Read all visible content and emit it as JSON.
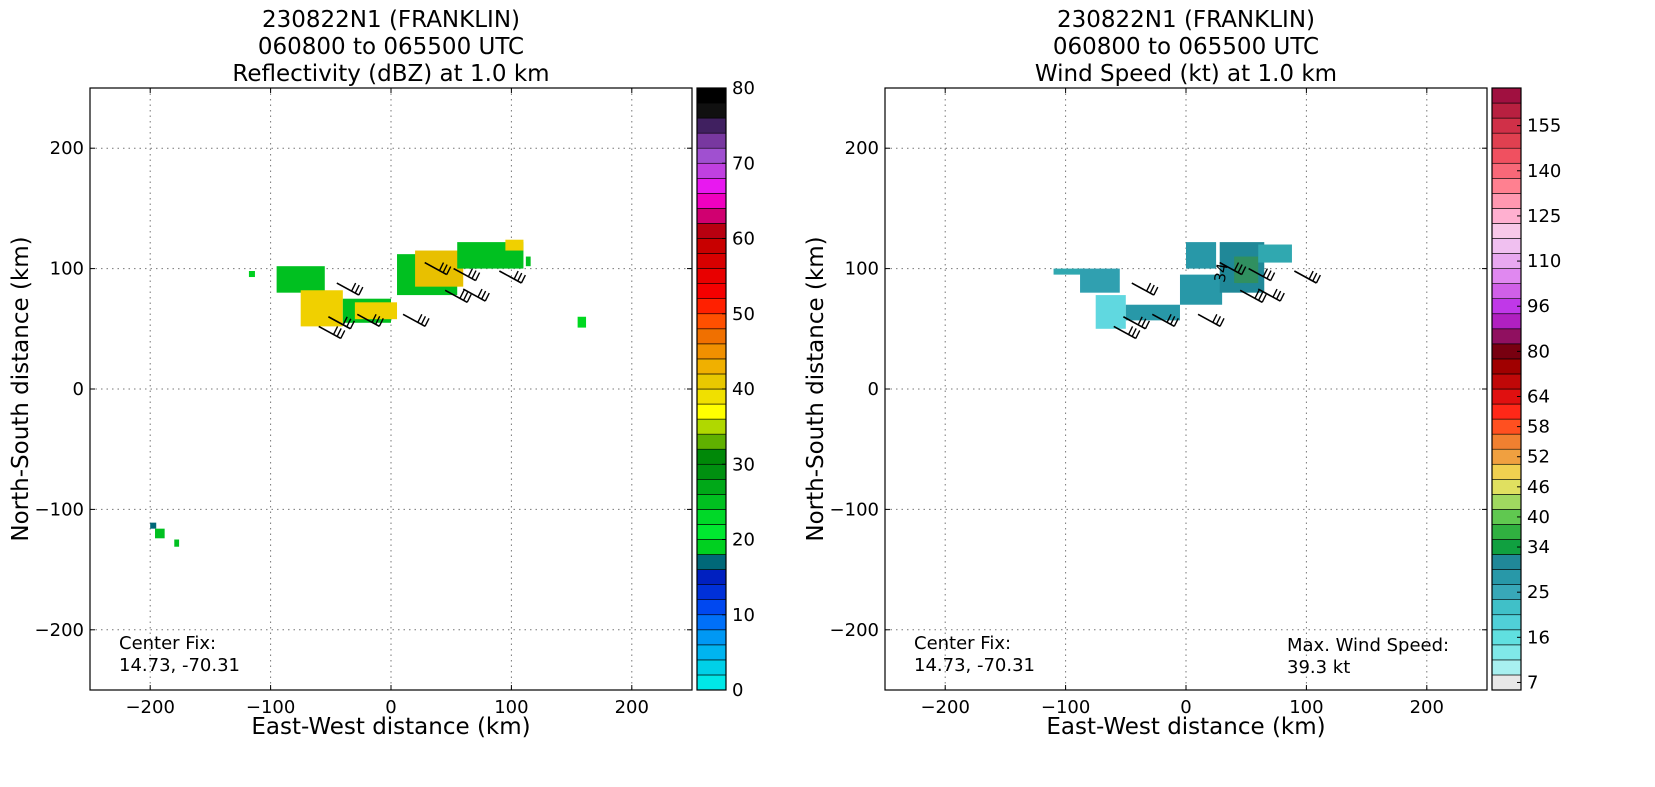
{
  "chart_data": [
    {
      "type": "heatmap",
      "title_lines": [
        "230822N1 (FRANKLIN)",
        "060800 to 065500 UTC",
        "Reflectivity (dBZ) at 1.0 km"
      ],
      "xlabel": "East-West distance (km)",
      "ylabel": "North-South distance (km)",
      "xlim": [
        -250,
        250
      ],
      "ylim": [
        -250,
        250
      ],
      "xticks": [
        -200,
        -100,
        0,
        100,
        200
      ],
      "yticks": [
        -200,
        -100,
        0,
        100,
        200
      ],
      "grid": true,
      "annotations": [
        {
          "position": "bottom-left",
          "lines": [
            "Center Fix:",
            "14.73, -70.31"
          ]
        }
      ],
      "colorbar": {
        "range": [
          0,
          80
        ],
        "tick_labels": [
          "0",
          "10",
          "20",
          "30",
          "40",
          "50",
          "60",
          "70",
          "80"
        ],
        "tick_values": [
          0,
          10,
          20,
          30,
          40,
          50,
          60,
          70,
          80
        ],
        "colors": [
          "#00e8e8",
          "#00d0e8",
          "#00b4f0",
          "#0098f4",
          "#0070f8",
          "#0048f0",
          "#0030d8",
          "#0020c0",
          "#006878",
          "#00d020",
          "#00e830",
          "#00d828",
          "#00c020",
          "#00a818",
          "#009010",
          "#008808",
          "#60b000",
          "#b0d800",
          "#ffff00",
          "#f0e000",
          "#e8c800",
          "#f0b000",
          "#f09000",
          "#f07000",
          "#ff5000",
          "#ff2000",
          "#f40000",
          "#e80000",
          "#d80000",
          "#c80000",
          "#b80010",
          "#d00070",
          "#f000c0",
          "#e818f0",
          "#c040e0",
          "#a050d0",
          "#7838a0",
          "#402060",
          "#101010",
          "#000000"
        ]
      },
      "echo_regions": [
        {
          "x": [
            -118,
            -113
          ],
          "y": [
            93,
            98
          ],
          "color": "#00d020"
        },
        {
          "x": [
            -95,
            -55
          ],
          "y": [
            80,
            102
          ],
          "color": "#00c020"
        },
        {
          "x": [
            -75,
            -40
          ],
          "y": [
            52,
            82
          ],
          "color": "#f0d000"
        },
        {
          "x": [
            -40,
            0
          ],
          "y": [
            55,
            75
          ],
          "color": "#00c020"
        },
        {
          "x": [
            -30,
            5
          ],
          "y": [
            58,
            72
          ],
          "color": "#f0d000"
        },
        {
          "x": [
            5,
            55
          ],
          "y": [
            78,
            112
          ],
          "color": "#00c020"
        },
        {
          "x": [
            20,
            60
          ],
          "y": [
            85,
            115
          ],
          "color": "#e8c000"
        },
        {
          "x": [
            55,
            110
          ],
          "y": [
            100,
            122
          ],
          "color": "#00c020"
        },
        {
          "x": [
            95,
            110
          ],
          "y": [
            115,
            124
          ],
          "color": "#f0d000"
        },
        {
          "x": [
            112,
            116
          ],
          "y": [
            102,
            110
          ],
          "color": "#00c020"
        },
        {
          "x": [
            155,
            162
          ],
          "y": [
            51,
            60
          ],
          "color": "#00d820"
        },
        {
          "x": [
            -200,
            -195
          ],
          "y": [
            -116,
            -111
          ],
          "color": "#006878"
        },
        {
          "x": [
            -196,
            -188
          ],
          "y": [
            -124,
            -116
          ],
          "color": "#00c020"
        },
        {
          "x": [
            -180,
            -176
          ],
          "y": [
            -131,
            -125
          ],
          "color": "#00c020"
        }
      ],
      "wind_barbs": [
        {
          "x": -45,
          "y": 88
        },
        {
          "x": -52,
          "y": 60
        },
        {
          "x": -28,
          "y": 62
        },
        {
          "x": 10,
          "y": 62
        },
        {
          "x": 45,
          "y": 82
        },
        {
          "x": 60,
          "y": 83
        },
        {
          "x": 52,
          "y": 100
        },
        {
          "x": 90,
          "y": 98
        },
        {
          "x": 28,
          "y": 105
        },
        {
          "x": -60,
          "y": 52
        }
      ]
    },
    {
      "type": "heatmap",
      "title_lines": [
        "230822N1 (FRANKLIN)",
        "060800 to 065500 UTC",
        "Wind Speed (kt) at 1.0 km"
      ],
      "xlabel": "East-West distance (km)",
      "ylabel": "North-South distance (km)",
      "xlim": [
        -250,
        250
      ],
      "ylim": [
        -250,
        250
      ],
      "xticks": [
        -200,
        -100,
        0,
        100,
        200
      ],
      "yticks": [
        -200,
        -100,
        0,
        100,
        200
      ],
      "grid": true,
      "annotations": [
        {
          "position": "bottom-left",
          "lines": [
            "Center Fix:",
            "14.73, -70.31"
          ]
        },
        {
          "position": "bottom-right",
          "lines": [
            "Max. Wind Speed:",
            "39.3 kt"
          ]
        }
      ],
      "colorbar": {
        "tick_labels": [
          "7",
          "16",
          "25",
          "34",
          "40",
          "46",
          "52",
          "58",
          "64",
          "80",
          "96",
          "110",
          "125",
          "140",
          "155"
        ],
        "tick_bins": [
          0,
          3,
          6,
          9,
          11,
          13,
          15,
          17,
          19,
          22,
          25,
          28,
          31,
          34,
          37
        ],
        "colors": [
          "#e8e8e8",
          "#a8f0f0",
          "#80e8e8",
          "#60e0e0",
          "#50d0d8",
          "#40c0c8",
          "#38a8b8",
          "#2898a8",
          "#208898",
          "#10a040",
          "#30b040",
          "#60c850",
          "#a0d860",
          "#e0e060",
          "#f0d050",
          "#f0a040",
          "#f08030",
          "#ff5020",
          "#ff2818",
          "#e01010",
          "#c00808",
          "#a00000",
          "#780010",
          "#901060",
          "#b020c0",
          "#c038e8",
          "#d060e8",
          "#e088f0",
          "#e8a8f0",
          "#f0c0f0",
          "#f8c8e8",
          "#ffb0d0",
          "#ff98b0",
          "#ff8090",
          "#f86878",
          "#f05060",
          "#e04050",
          "#d03048",
          "#b82040",
          "#a01040"
        ]
      },
      "echo_regions": [
        {
          "x": [
            -110,
            -85
          ],
          "y": [
            95,
            100
          ],
          "color": "#30a8b0"
        },
        {
          "x": [
            -88,
            -55
          ],
          "y": [
            80,
            100
          ],
          "color": "#30a0b0"
        },
        {
          "x": [
            -75,
            -50
          ],
          "y": [
            50,
            78
          ],
          "color": "#60d8e0"
        },
        {
          "x": [
            -50,
            -5
          ],
          "y": [
            57,
            70
          ],
          "color": "#2898a8"
        },
        {
          "x": [
            -5,
            30
          ],
          "y": [
            70,
            95
          ],
          "color": "#2898a8"
        },
        {
          "x": [
            0,
            25
          ],
          "y": [
            100,
            122
          ],
          "color": "#2898a8"
        },
        {
          "x": [
            28,
            65
          ],
          "y": [
            80,
            122
          ],
          "color": "#208898"
        },
        {
          "x": [
            40,
            60
          ],
          "y": [
            88,
            110
          ],
          "color": "#309060"
        },
        {
          "x": [
            60,
            88
          ],
          "y": [
            105,
            120
          ],
          "color": "#30a8b0"
        }
      ],
      "contour_label": {
        "text": "34",
        "x": 32,
        "y": 88
      },
      "wind_barbs": [
        {
          "x": -45,
          "y": 88
        },
        {
          "x": -52,
          "y": 60
        },
        {
          "x": -28,
          "y": 62
        },
        {
          "x": 10,
          "y": 62
        },
        {
          "x": 45,
          "y": 82
        },
        {
          "x": 60,
          "y": 83
        },
        {
          "x": 52,
          "y": 100
        },
        {
          "x": 90,
          "y": 98
        },
        {
          "x": 28,
          "y": 105
        },
        {
          "x": -60,
          "y": 52
        }
      ]
    }
  ]
}
